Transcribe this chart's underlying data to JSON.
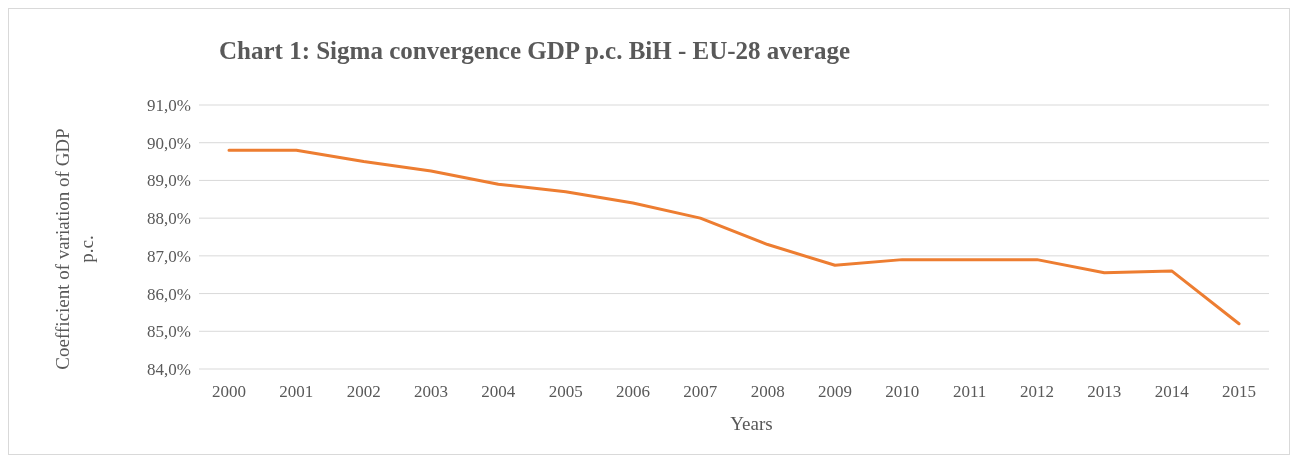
{
  "chart_data": {
    "type": "line",
    "title": "Chart 1: Sigma convergence GDP p.c. BiH - EU-28 average",
    "xlabel": "Years",
    "ylabel": "Coefficient of variation of GDP p.c.",
    "categories": [
      "2000",
      "2001",
      "2002",
      "2003",
      "2004",
      "2005",
      "2006",
      "2007",
      "2008",
      "2009",
      "2010",
      "2011",
      "2012",
      "2013",
      "2014",
      "2015"
    ],
    "series": [
      {
        "color": "#ed7d31",
        "values": [
          89.8,
          89.8,
          89.5,
          89.25,
          88.9,
          88.7,
          88.4,
          88.0,
          87.3,
          86.75,
          86.9,
          86.9,
          86.9,
          86.55,
          86.6,
          85.2
        ]
      }
    ],
    "ylim": [
      84,
      91
    ],
    "yticks": [
      {
        "value": 84,
        "label": "84,0%"
      },
      {
        "value": 85,
        "label": "85,0%"
      },
      {
        "value": 86,
        "label": "86,0%"
      },
      {
        "value": 87,
        "label": "87,0%"
      },
      {
        "value": 88,
        "label": "88,0%"
      },
      {
        "value": 89,
        "label": "89,0%"
      },
      {
        "value": 90,
        "label": "90,0%"
      },
      {
        "value": 91,
        "label": "91,0%"
      }
    ],
    "grid": "y",
    "legend": false,
    "marker": "none",
    "line_style": "solid"
  }
}
